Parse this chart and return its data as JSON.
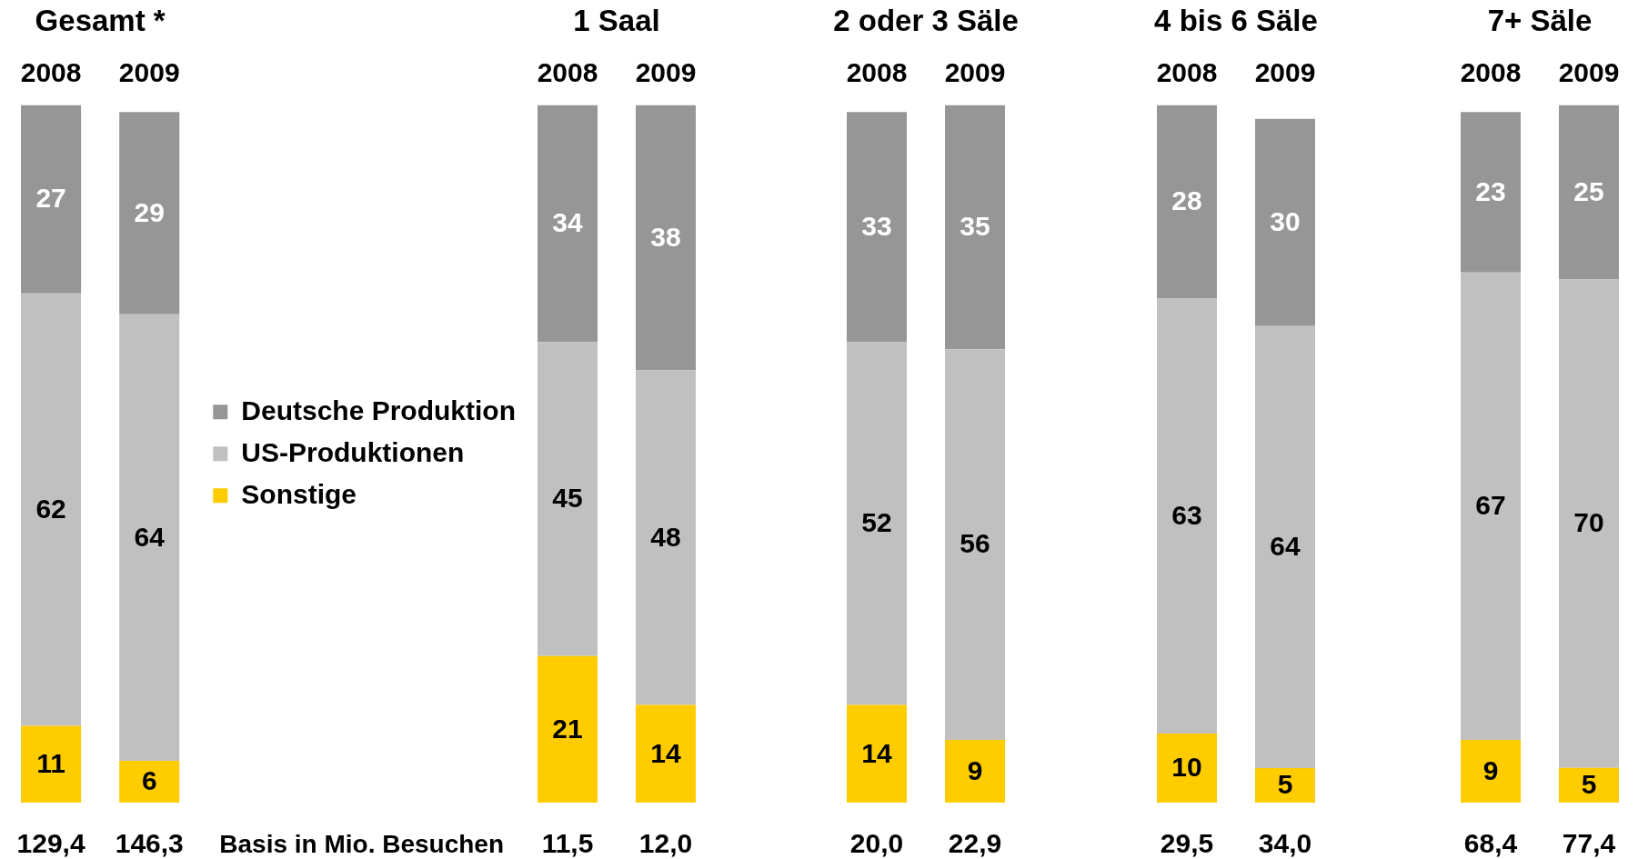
{
  "chart_data": [
    {
      "type": "bar",
      "title": "Gesamt *",
      "categories": [
        "2008",
        "2009"
      ],
      "series": [
        {
          "name": "Sonstige",
          "color": "#ffcc00",
          "values": [
            11,
            6
          ]
        },
        {
          "name": "US-Produktionen",
          "color": "#c0c0c0",
          "values": [
            62,
            64
          ]
        },
        {
          "name": "Deutsche Produktion",
          "color": "#969696",
          "values": [
            27,
            29
          ]
        }
      ],
      "stacked": true,
      "data_labels": true,
      "tick_labels": "x",
      "legend": "right",
      "annotations": [
        "129,4",
        "146,3",
        "Basis in Mio. Besuchen"
      ]
    },
    {
      "type": "bar",
      "title": "1 Saal",
      "categories": [
        "2008",
        "2009"
      ],
      "series": [
        {
          "color": "#ffcc00",
          "values": [
            21,
            14
          ]
        },
        {
          "color": "#c0c0c0",
          "values": [
            45,
            48
          ]
        },
        {
          "color": "#969696",
          "values": [
            34,
            38
          ]
        }
      ],
      "stacked": true,
      "data_labels": true,
      "tick_labels": "x",
      "annotations": [
        "11,5",
        "12,0"
      ]
    },
    {
      "type": "bar",
      "title": "2 oder 3 Säle",
      "categories": [
        "2008",
        "2009"
      ],
      "series": [
        {
          "color": "#ffcc00",
          "values": [
            14,
            9
          ]
        },
        {
          "color": "#c0c0c0",
          "values": [
            52,
            56
          ]
        },
        {
          "color": "#969696",
          "values": [
            33,
            35
          ]
        }
      ],
      "stacked": true,
      "data_labels": true,
      "tick_labels": "x",
      "annotations": [
        "20,0",
        "22,9"
      ]
    },
    {
      "type": "bar",
      "title": "4 bis 6 Säle",
      "categories": [
        "2008",
        "2009"
      ],
      "series": [
        {
          "color": "#ffcc00",
          "values": [
            10,
            5
          ]
        },
        {
          "color": "#c0c0c0",
          "values": [
            63,
            64
          ]
        },
        {
          "color": "#969696",
          "values": [
            28,
            30
          ]
        }
      ],
      "stacked": true,
      "data_labels": true,
      "tick_labels": "x",
      "annotations": [
        "29,5",
        "34,0"
      ]
    },
    {
      "type": "bar",
      "title": "7+ Säle",
      "categories": [
        "2008",
        "2009"
      ],
      "series": [
        {
          "color": "#ffcc00",
          "values": [
            9,
            5
          ]
        },
        {
          "color": "#c0c0c0",
          "values": [
            67,
            70
          ]
        },
        {
          "color": "#969696",
          "values": [
            23,
            25
          ]
        }
      ],
      "stacked": true,
      "data_labels": true,
      "tick_labels": "x",
      "annotations": [
        "68,4",
        "77,4"
      ]
    }
  ]
}
